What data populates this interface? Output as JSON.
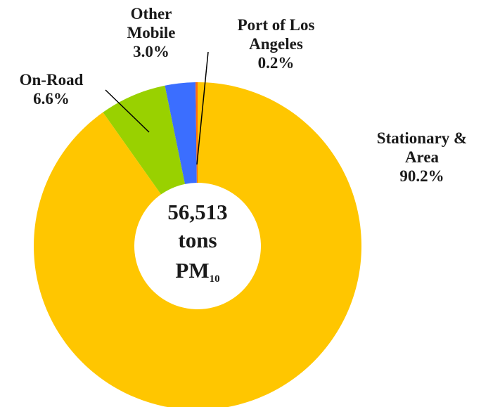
{
  "chart_data": {
    "type": "donut",
    "categories": [
      "Stationary & Area",
      "On-Road",
      "Other Mobile",
      "Port of Los Angeles"
    ],
    "values": [
      90.2,
      6.6,
      3.0,
      0.2
    ],
    "value_labels": [
      "90.2%",
      "6.6%",
      "3.0%",
      "0.2%"
    ],
    "colors": [
      "#FFC600",
      "#99D100",
      "#3B6EFF",
      "#FF6A10"
    ],
    "center_total": "56,513",
    "center_unit": "tons",
    "center_pollutant": "PM",
    "center_pollutant_subscript": "10"
  }
}
